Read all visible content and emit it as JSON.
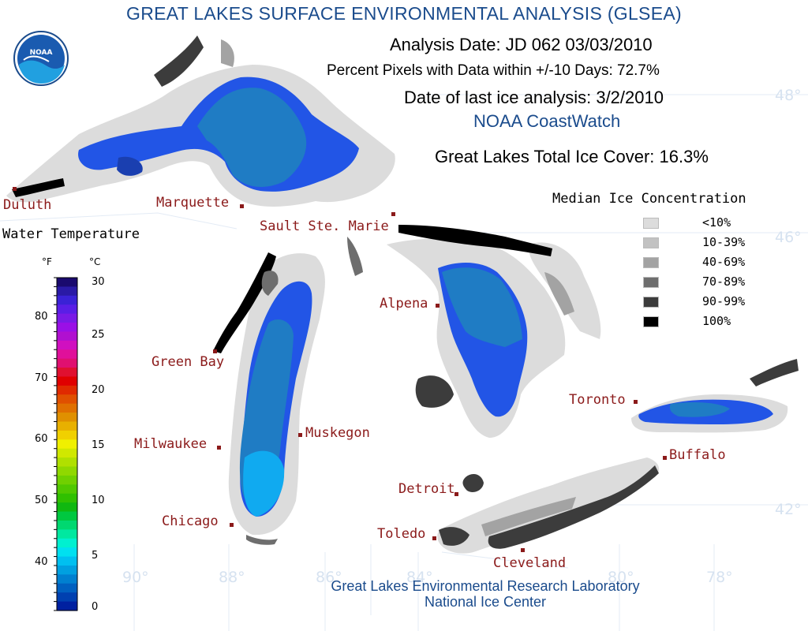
{
  "header": {
    "title": "GREAT LAKES SURFACE ENVIRONMENTAL ANALYSIS (GLSEA)",
    "analysis_date": "Analysis Date:  JD 062 03/03/2010",
    "percent_pixels": "Percent Pixels with Data within +/-10 Days:  72.7%",
    "last_ice_analysis": "Date of last ice analysis: 3/2/2010",
    "coastwatch": "NOAA CoastWatch",
    "total_ice_cover": "Great Lakes Total Ice Cover:  16.3%"
  },
  "logo": {
    "text": "NOAA"
  },
  "credits": {
    "line1": "Great Lakes Environmental Research Laboratory",
    "line2": "National Ice Center"
  },
  "water_temperature_legend": {
    "title": "Water Temperature",
    "unit_f": "°F",
    "unit_c": "°C",
    "fahrenheit_ticks": [
      "80",
      "70",
      "60",
      "50",
      "40"
    ],
    "celsius_ticks": [
      "30",
      "25",
      "20",
      "15",
      "10",
      "5",
      "0"
    ],
    "colors_top_to_bottom": [
      "#1a0a6e",
      "#2a1aa6",
      "#3a22d6",
      "#5a1ee6",
      "#7a1ae6",
      "#9a10e6",
      "#b010d0",
      "#d010c0",
      "#e0109a",
      "#e01070",
      "#e01030",
      "#e00000",
      "#e02a00",
      "#e05000",
      "#e07000",
      "#e09000",
      "#e8b000",
      "#f0d000",
      "#f0f000",
      "#d0e800",
      "#b0e000",
      "#90d800",
      "#70d000",
      "#50c800",
      "#30c000",
      "#10b810",
      "#00c840",
      "#00d870",
      "#00e8a0",
      "#00f0d0",
      "#00e0f0",
      "#00c0f0",
      "#00a0e0",
      "#0080d0",
      "#0060c0",
      "#0040b0",
      "#0020a0"
    ]
  },
  "ice_legend": {
    "title": "Median Ice Concentration",
    "items": [
      {
        "label": "<10%",
        "color": "#dcdcdc"
      },
      {
        "label": "10-39%",
        "color": "#c2c2c2"
      },
      {
        "label": "40-69%",
        "color": "#a3a3a3"
      },
      {
        "label": "70-89%",
        "color": "#6e6e6e"
      },
      {
        "label": "90-99%",
        "color": "#3c3c3c"
      },
      {
        "label": "100%",
        "color": "#000000"
      }
    ]
  },
  "cities": [
    {
      "name": "Duluth"
    },
    {
      "name": "Marquette"
    },
    {
      "name": "Sault Ste. Marie"
    },
    {
      "name": "Green Bay"
    },
    {
      "name": "Alpena"
    },
    {
      "name": "Muskegon"
    },
    {
      "name": "Milwaukee"
    },
    {
      "name": "Chicago"
    },
    {
      "name": "Detroit"
    },
    {
      "name": "Toledo"
    },
    {
      "name": "Cleveland"
    },
    {
      "name": "Toronto"
    },
    {
      "name": "Buffalo"
    }
  ],
  "coordinates": {
    "lat_48": "48°",
    "lat_46": "46°",
    "lat_42": "42°",
    "lon_90": "90°",
    "lon_88": "88°",
    "lon_86": "86°",
    "lon_84": "84°",
    "lon_80": "80°",
    "lon_78": "78°"
  },
  "colors": {
    "title_blue": "#1a4b8c",
    "city_red": "#8b1a1a",
    "water_blue_bright": "#2255e6",
    "water_teal": "#1f7cc4",
    "water_light": "#10aaf0",
    "ice_light": "#dcdcdc"
  }
}
